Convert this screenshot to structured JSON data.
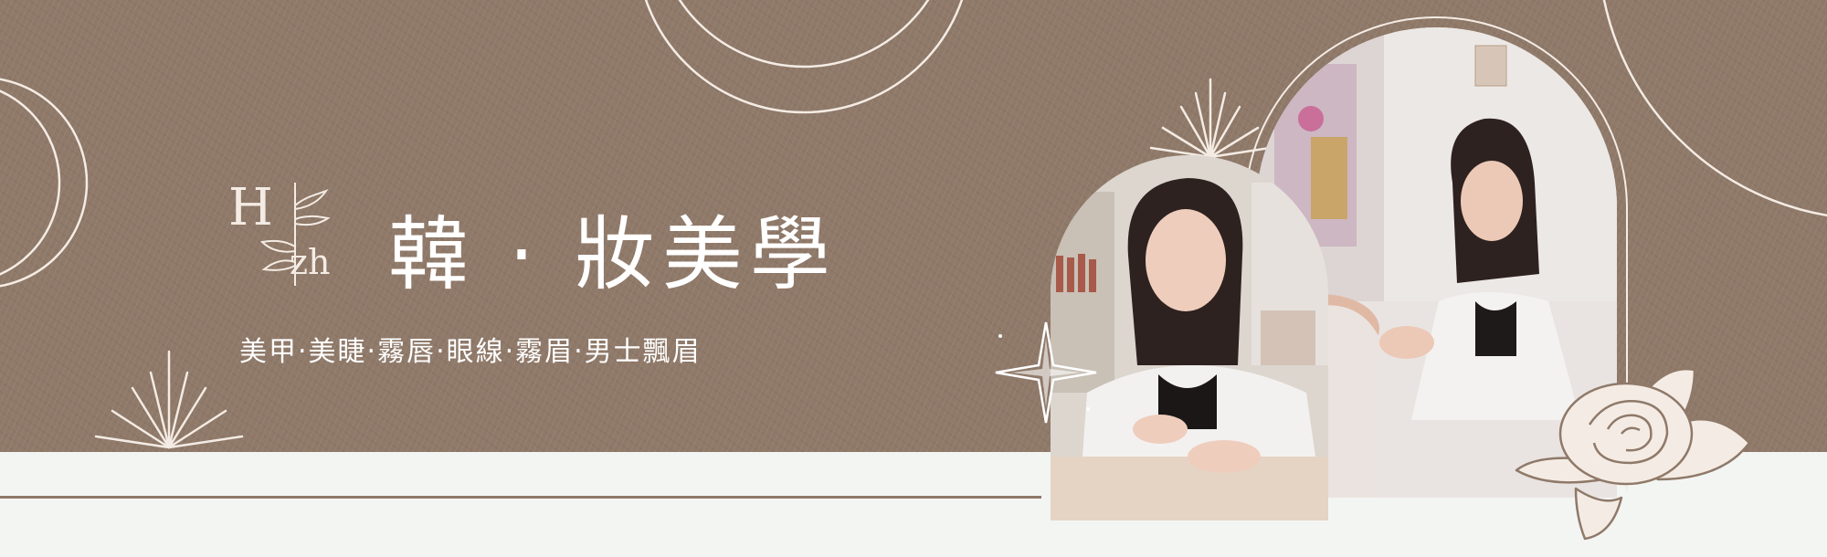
{
  "brand": {
    "logo_h": "H",
    "logo_zh": "zh",
    "title": "韓 · 妝美學",
    "services": "美甲‧美睫‧霧唇‧眼線‧霧眉‧男士飄眉"
  },
  "colors": {
    "brown_background": "#8f7969",
    "light_strip": "#f3f5f3",
    "line_accent": "#f4ece4",
    "text": "#ffffff"
  },
  "icons": [
    "sunburst-icon",
    "sparkle-icon",
    "rose-icon",
    "leaf-branch-icon"
  ]
}
